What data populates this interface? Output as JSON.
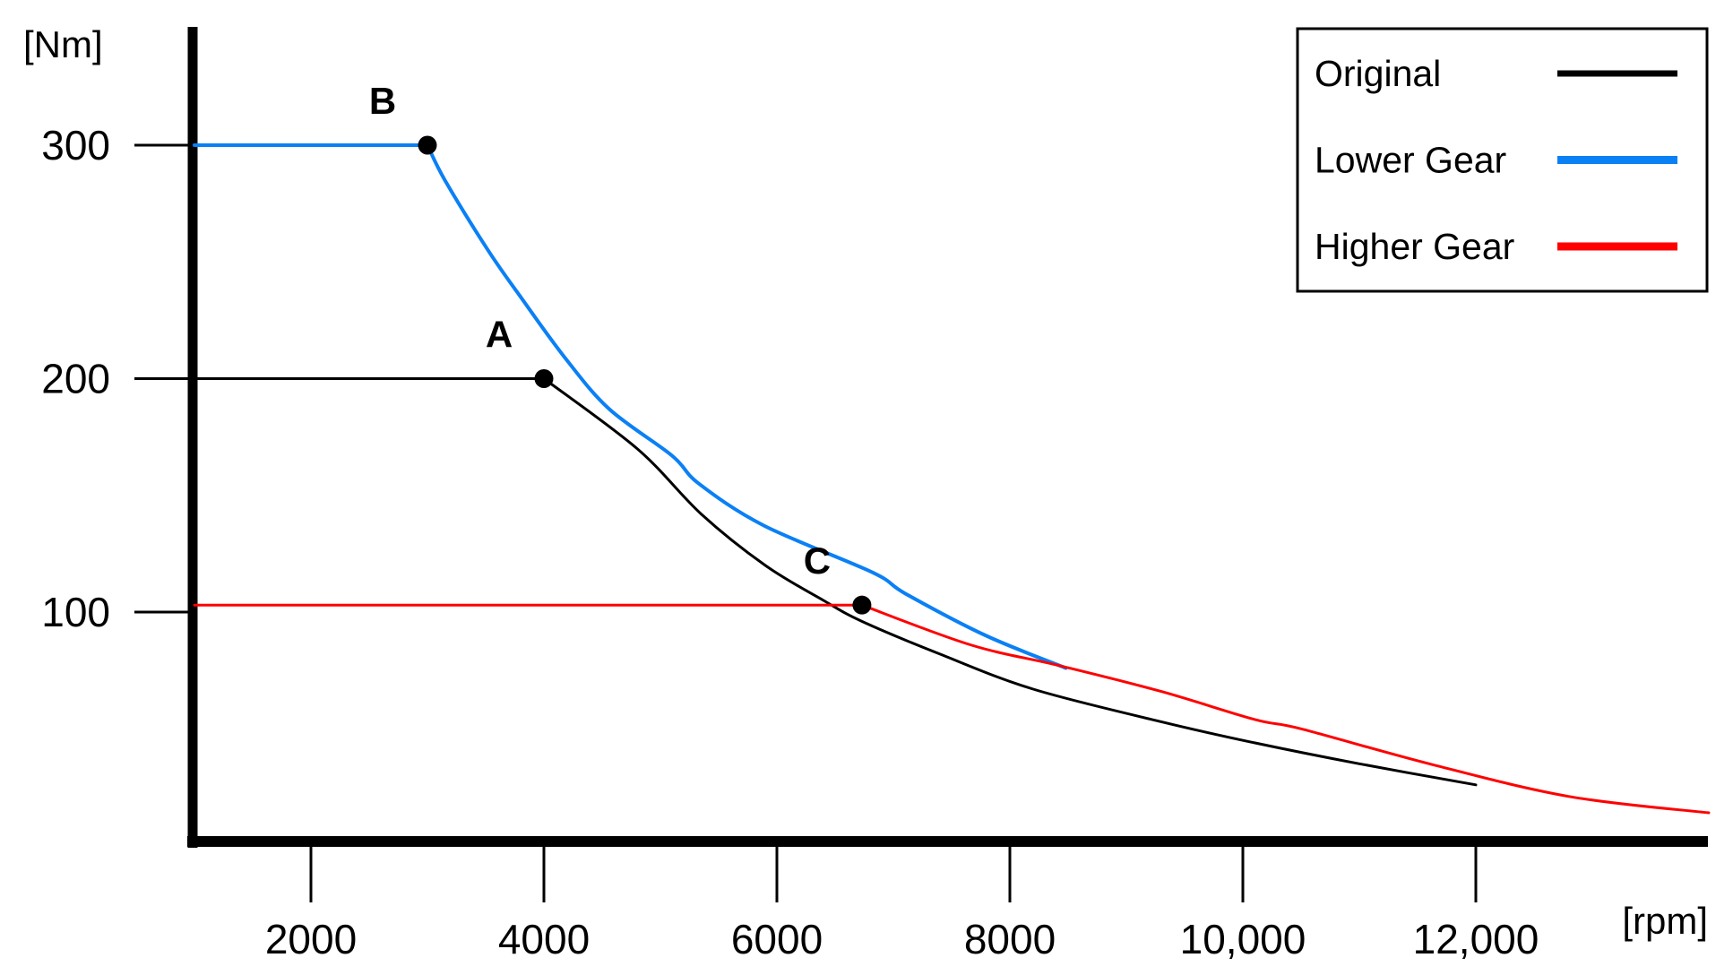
{
  "chart_data": {
    "type": "line",
    "title": "",
    "xlabel": "[rpm]",
    "ylabel": "[Nm]",
    "xlim": [
      1000,
      14000
    ],
    "ylim": [
      0,
      350
    ],
    "grid": false,
    "x_ticks": [
      {
        "value": 2000,
        "label": "2000"
      },
      {
        "value": 4000,
        "label": "4000"
      },
      {
        "value": 6000,
        "label": "6000"
      },
      {
        "value": 8000,
        "label": "8000"
      },
      {
        "value": 10000,
        "label": "10,000"
      },
      {
        "value": 12000,
        "label": "12,000"
      }
    ],
    "y_ticks": [
      {
        "value": 100,
        "label": "100"
      },
      {
        "value": 200,
        "label": "200"
      },
      {
        "value": 300,
        "label": "300"
      }
    ],
    "series": [
      {
        "name": "Original",
        "color": "#000000",
        "stroke_width": 3,
        "flat": [
          [
            1000,
            200
          ],
          [
            4000,
            200
          ]
        ],
        "decay": [
          [
            4000,
            200
          ],
          [
            4800,
            170
          ],
          [
            5350,
            142
          ],
          [
            5900,
            120
          ],
          [
            6400,
            105
          ],
          [
            6730,
            96
          ],
          [
            7400,
            82
          ],
          [
            8200,
            67
          ],
          [
            9300,
            53
          ],
          [
            10100,
            44
          ],
          [
            11000,
            35
          ],
          [
            12000,
            26
          ]
        ]
      },
      {
        "name": "Lower Gear",
        "color": "#0b80f5",
        "stroke_width": 4,
        "flat": [
          [
            1000,
            300
          ],
          [
            3000,
            300
          ]
        ],
        "decay": [
          [
            3000,
            300
          ],
          [
            3150,
            285
          ],
          [
            3520,
            255
          ],
          [
            3800,
            235
          ],
          [
            4180,
            209
          ],
          [
            4560,
            187
          ],
          [
            5100,
            167
          ],
          [
            5330,
            155
          ],
          [
            5890,
            137
          ],
          [
            6820,
            117
          ],
          [
            7100,
            108
          ],
          [
            7790,
            90
          ],
          [
            8480,
            76
          ]
        ]
      },
      {
        "name": "Higher Gear",
        "color": "#fe0000",
        "stroke_width": 3,
        "flat": [
          [
            1000,
            103
          ],
          [
            6730,
            103
          ]
        ],
        "decay": [
          [
            6730,
            103
          ],
          [
            7660,
            86
          ],
          [
            8430,
            77
          ],
          [
            9300,
            66
          ],
          [
            10100,
            54
          ],
          [
            10500,
            50
          ],
          [
            11600,
            35
          ],
          [
            12800,
            21
          ],
          [
            14000,
            14
          ]
        ]
      }
    ],
    "markers": [
      {
        "label": "A",
        "rpm": 4000,
        "nm": 200
      },
      {
        "label": "B",
        "rpm": 3000,
        "nm": 300
      },
      {
        "label": "C",
        "rpm": 6730,
        "nm": 103
      }
    ],
    "legend": {
      "position": "top-right",
      "items": [
        {
          "label": "Original",
          "color": "#000000"
        },
        {
          "label": "Lower Gear",
          "color": "#0b80f5"
        },
        {
          "label": "Higher Gear",
          "color": "#fe0000"
        }
      ]
    }
  }
}
